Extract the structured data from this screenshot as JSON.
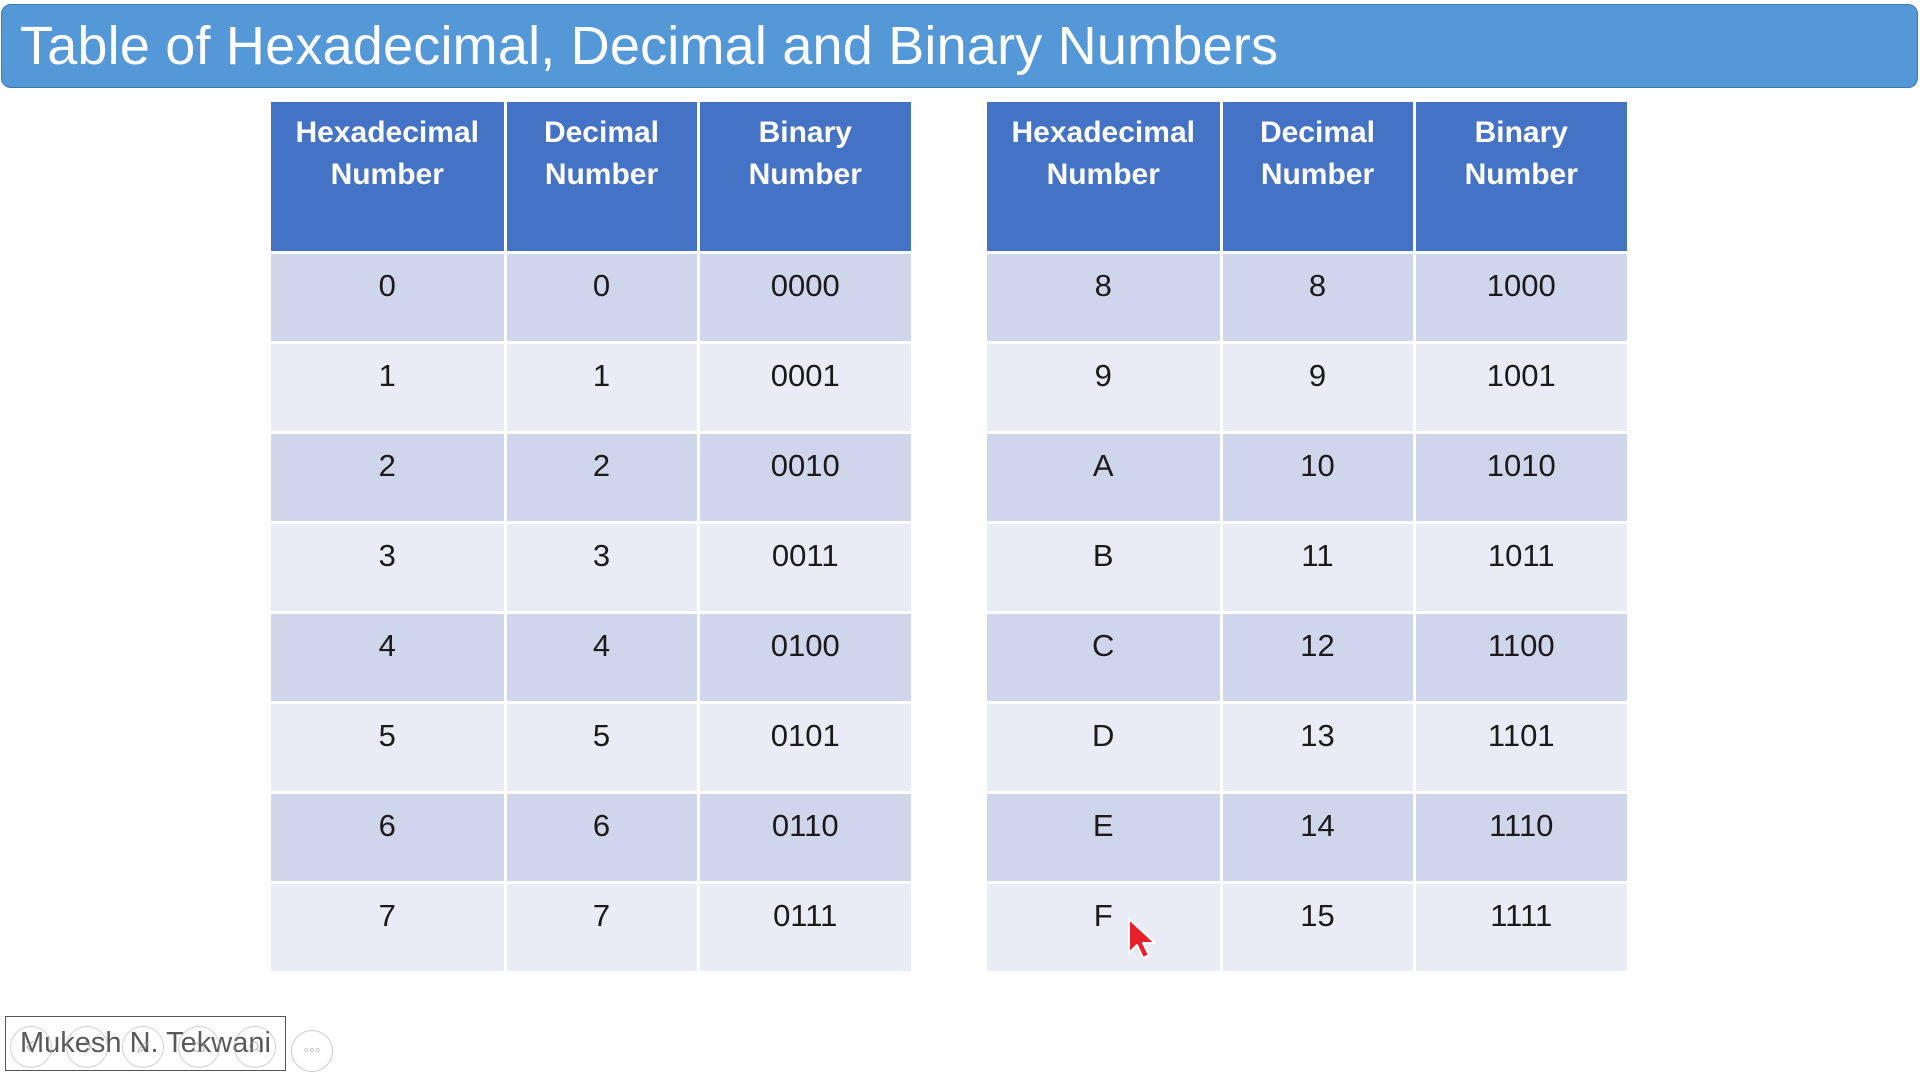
{
  "slide": {
    "title": "Table of Hexadecimal, Decimal and Binary Numbers",
    "footer_author": "Mukesh N. Tekwani",
    "more_button_label": "◦◦◦"
  },
  "table": {
    "headers": [
      "Hexadecimal Number",
      "Decimal Number",
      "Binary Number"
    ],
    "left_rows": [
      [
        "0",
        "0",
        "0000"
      ],
      [
        "1",
        "1",
        "0001"
      ],
      [
        "2",
        "2",
        "0010"
      ],
      [
        "3",
        "3",
        "0011"
      ],
      [
        "4",
        "4",
        "0100"
      ],
      [
        "5",
        "5",
        "0101"
      ],
      [
        "6",
        "6",
        "0110"
      ],
      [
        "7",
        "7",
        "0111"
      ]
    ],
    "right_rows": [
      [
        "8",
        "8",
        "1000"
      ],
      [
        "9",
        "9",
        "1001"
      ],
      [
        "A",
        "10",
        "1010"
      ],
      [
        "B",
        "11",
        "1011"
      ],
      [
        "C",
        "12",
        "1100"
      ],
      [
        "D",
        "13",
        "1101"
      ],
      [
        "E",
        "14",
        "1110"
      ],
      [
        "F",
        "15",
        "1111"
      ]
    ]
  },
  "icons": {
    "player_controls": [
      "previous-icon",
      "next-icon",
      "pen-icon",
      "slides-icon",
      "zoom-icon"
    ],
    "more": "more-options-icon",
    "cursor": "mouse-pointer-icon"
  },
  "colors": {
    "title_bar": "#5498d8",
    "header_fill": "#4472c4",
    "row_dark": "#cfd5ea",
    "row_light": "#e9ebf5",
    "cursor_red": "#e8202a"
  }
}
